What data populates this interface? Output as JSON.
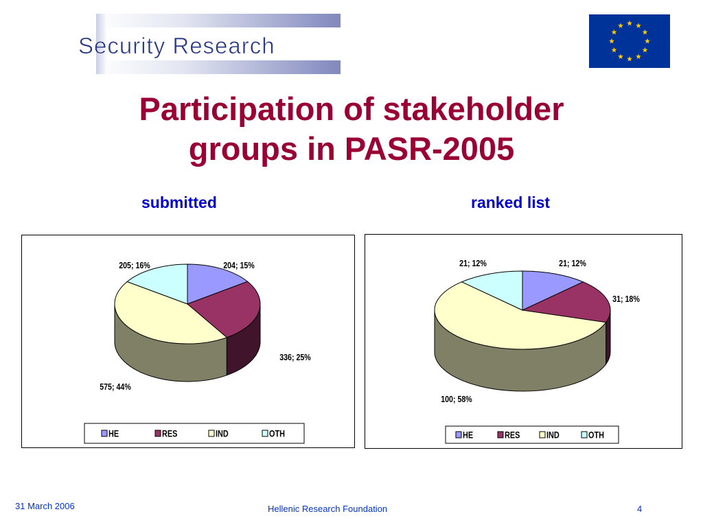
{
  "header": {
    "logo_text": "Security Research",
    "flag_icon": "eu-flag-icon"
  },
  "title": {
    "line1": "Participation of stakeholder",
    "line2": "groups in PASR-2005"
  },
  "colors": {
    "title": "#990033",
    "subtitle": "#0000cc",
    "footer": "#0033cc",
    "HE": "#9999ff",
    "RES": "#993366",
    "IND": "#ffffcc",
    "OTH": "#ccffff",
    "side": "#808066"
  },
  "chart_data": [
    {
      "type": "pie",
      "title": "submitted",
      "three_d": true,
      "legend_position": "bottom",
      "categories": [
        "HE",
        "RES",
        "IND",
        "OTH"
      ],
      "values": [
        204,
        336,
        575,
        205
      ],
      "percent": [
        15,
        25,
        44,
        16
      ],
      "labels": [
        "204; 15%",
        "336; 25%",
        "575; 44%",
        "205; 16%"
      ],
      "legend": [
        "HE",
        "RES",
        "IND",
        "OTH"
      ]
    },
    {
      "type": "pie",
      "title": "ranked list",
      "three_d": true,
      "legend_position": "bottom",
      "categories": [
        "HE",
        "RES",
        "IND",
        "OTH"
      ],
      "values": [
        21,
        31,
        100,
        21
      ],
      "percent": [
        12,
        18,
        58,
        12
      ],
      "labels": [
        "21; 12%",
        "31; 18%",
        "100; 58%",
        "21; 12%"
      ],
      "legend": [
        "HE",
        "RES",
        "IND",
        "OTH"
      ]
    }
  ],
  "footer": {
    "date": "31 March 2006",
    "organization": "Hellenic Research Foundation",
    "page": "4"
  }
}
